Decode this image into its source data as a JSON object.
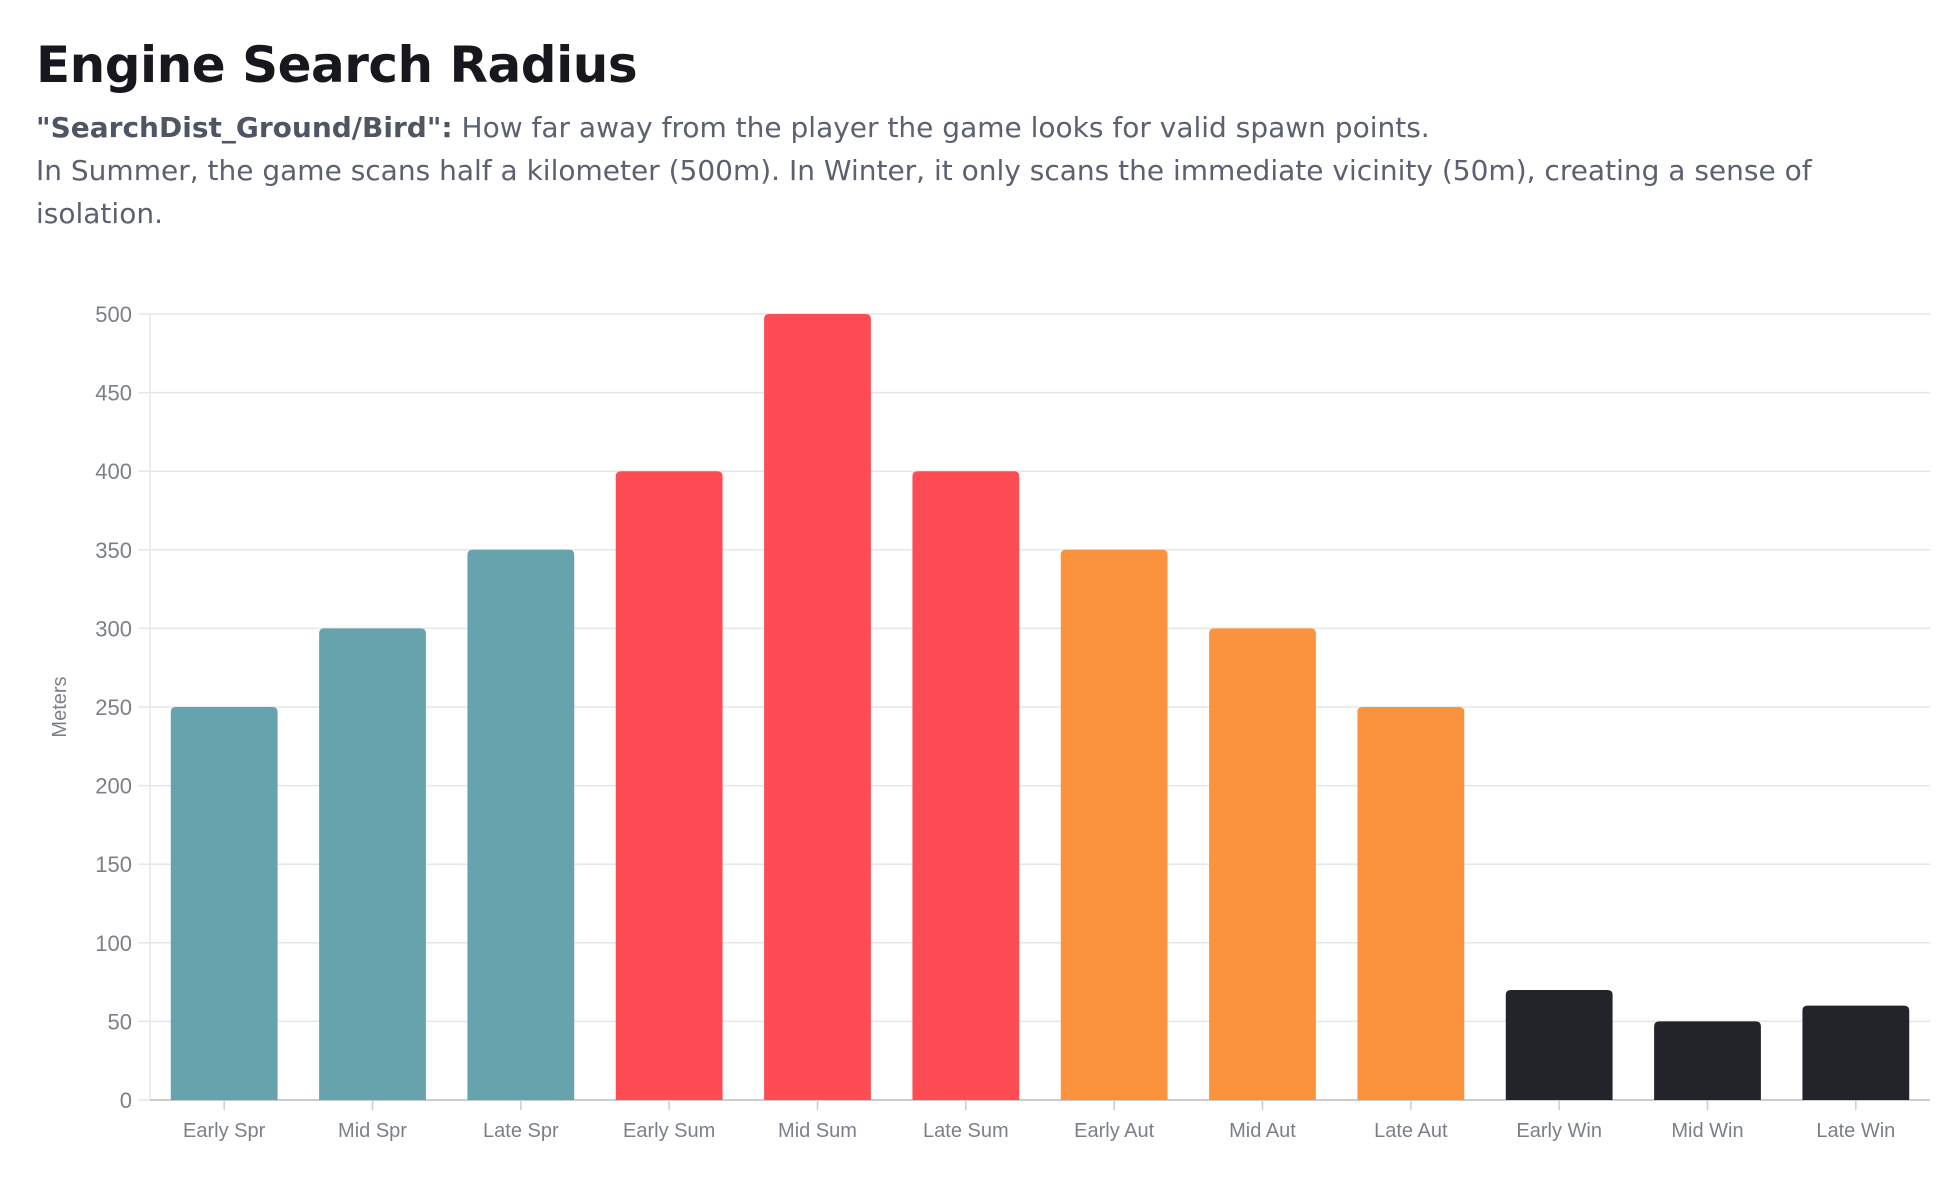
{
  "header": {
    "title": "Engine Search Radius",
    "key": "\"SearchDist_Ground/Bird\":",
    "line1": " How far away from the player the game looks for valid spawn points.",
    "line2": "In Summer, the game scans half a kilometer (500m). In Winter, it only scans the immediate vicinity (50m), creating a sense of isolation."
  },
  "colors": {
    "spring": "#67a3ac",
    "summer": "#fd4c53",
    "autumn": "#fb933e",
    "winter": "#222429",
    "grid": "#e4e6e9",
    "axis": "#c9ccd1"
  },
  "chart_data": {
    "type": "bar",
    "title": "Engine Search Radius",
    "xlabel": "",
    "ylabel": "Meters",
    "ylim": [
      0,
      500
    ],
    "yticks": [
      0,
      50,
      100,
      150,
      200,
      250,
      300,
      350,
      400,
      450,
      500
    ],
    "grid": true,
    "legend": "none",
    "categories": [
      "Early Spr",
      "Mid Spr",
      "Late Spr",
      "Early Sum",
      "Mid Sum",
      "Late Sum",
      "Early Aut",
      "Mid Aut",
      "Late Aut",
      "Early Win",
      "Mid Win",
      "Late Win"
    ],
    "values": [
      250,
      300,
      350,
      400,
      500,
      400,
      350,
      300,
      250,
      70,
      50,
      60
    ],
    "bar_colors": [
      "#67a3ac",
      "#67a3ac",
      "#67a3ac",
      "#fd4c53",
      "#fd4c53",
      "#fd4c53",
      "#fb933e",
      "#fb933e",
      "#fb933e",
      "#222429",
      "#222429",
      "#222429"
    ]
  }
}
